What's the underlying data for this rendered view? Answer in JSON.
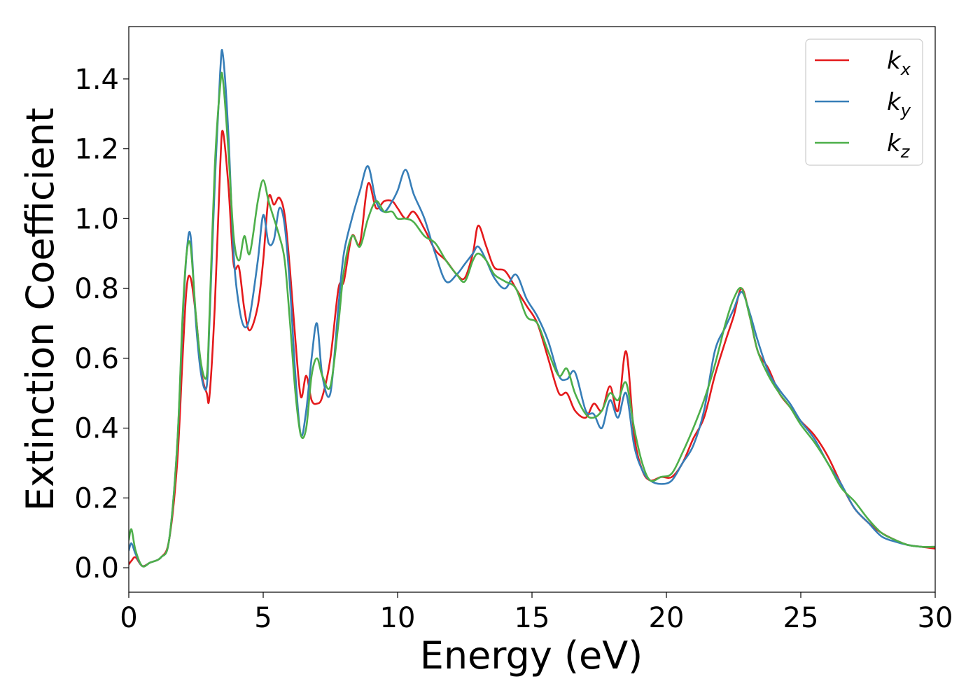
{
  "chart_data": {
    "type": "line",
    "xlabel": "Energy (eV)",
    "ylabel": "Extinction Coefficient",
    "xlim": [
      0,
      30
    ],
    "ylim": [
      -0.07,
      1.55
    ],
    "xticks": [
      0,
      5,
      10,
      15,
      20,
      25,
      30
    ],
    "xtick_labels": [
      "0",
      "5",
      "10",
      "15",
      "20",
      "25",
      "30"
    ],
    "yticks": [
      0.0,
      0.2,
      0.4,
      0.6,
      0.8,
      1.0,
      1.2,
      1.4
    ],
    "ytick_labels": [
      "0.0",
      "0.2",
      "0.4",
      "0.6",
      "0.8",
      "1.0",
      "1.2",
      "1.4"
    ],
    "grid": false,
    "legend_position": "top-right",
    "series": [
      {
        "name": "k_x",
        "label_base": "k",
        "label_sub": "x",
        "color": "#e41a1c",
        "x": [
          0,
          0.1,
          0.25,
          0.5,
          0.8,
          1.2,
          1.5,
          1.8,
          2.0,
          2.15,
          2.3,
          2.5,
          2.7,
          2.9,
          3.0,
          3.2,
          3.4,
          3.5,
          3.7,
          3.9,
          4.1,
          4.3,
          4.5,
          4.8,
          5.0,
          5.2,
          5.4,
          5.6,
          5.8,
          6.0,
          6.2,
          6.4,
          6.6,
          6.8,
          7.0,
          7.2,
          7.5,
          7.8,
          8.0,
          8.3,
          8.6,
          8.9,
          9.2,
          9.5,
          9.8,
          10.0,
          10.3,
          10.6,
          11.0,
          11.4,
          11.8,
          12.2,
          12.5,
          12.8,
          13.0,
          13.3,
          13.6,
          14.0,
          14.4,
          14.8,
          15.2,
          15.6,
          16.0,
          16.3,
          16.6,
          17.0,
          17.3,
          17.6,
          17.9,
          18.2,
          18.5,
          18.8,
          19.1,
          19.4,
          19.8,
          20.2,
          20.6,
          21.0,
          21.4,
          21.8,
          22.2,
          22.5,
          22.8,
          23.1,
          23.4,
          23.8,
          24.2,
          24.6,
          25.0,
          25.5,
          26.0,
          26.5,
          27.0,
          27.5,
          28.0,
          28.5,
          29.0,
          29.5,
          30.0
        ],
        "y": [
          0.01,
          0.02,
          0.03,
          0.005,
          0.015,
          0.03,
          0.08,
          0.3,
          0.6,
          0.8,
          0.83,
          0.72,
          0.56,
          0.5,
          0.49,
          0.75,
          1.15,
          1.25,
          1.1,
          0.87,
          0.86,
          0.74,
          0.68,
          0.75,
          0.88,
          1.06,
          1.04,
          1.06,
          1.01,
          0.85,
          0.65,
          0.49,
          0.55,
          0.48,
          0.47,
          0.49,
          0.6,
          0.8,
          0.82,
          0.95,
          0.93,
          1.1,
          1.03,
          1.05,
          1.05,
          1.03,
          1.0,
          1.02,
          0.97,
          0.91,
          0.88,
          0.84,
          0.83,
          0.9,
          0.98,
          0.92,
          0.86,
          0.85,
          0.8,
          0.75,
          0.7,
          0.6,
          0.5,
          0.5,
          0.45,
          0.43,
          0.47,
          0.45,
          0.52,
          0.45,
          0.62,
          0.38,
          0.28,
          0.25,
          0.26,
          0.26,
          0.3,
          0.37,
          0.43,
          0.55,
          0.65,
          0.72,
          0.8,
          0.72,
          0.62,
          0.57,
          0.5,
          0.46,
          0.42,
          0.38,
          0.32,
          0.24,
          0.17,
          0.13,
          0.1,
          0.08,
          0.065,
          0.06,
          0.055
        ]
      },
      {
        "name": "k_y",
        "label_base": "k",
        "label_sub": "y",
        "color": "#377eb8",
        "x": [
          0,
          0.1,
          0.25,
          0.5,
          0.8,
          1.2,
          1.5,
          1.8,
          2.0,
          2.15,
          2.3,
          2.5,
          2.7,
          2.9,
          3.0,
          3.2,
          3.4,
          3.5,
          3.7,
          3.9,
          4.1,
          4.3,
          4.5,
          4.8,
          5.0,
          5.2,
          5.4,
          5.6,
          5.8,
          6.0,
          6.2,
          6.4,
          6.6,
          6.8,
          7.0,
          7.2,
          7.5,
          7.8,
          8.0,
          8.3,
          8.6,
          8.9,
          9.2,
          9.5,
          9.8,
          10.0,
          10.3,
          10.6,
          11.0,
          11.4,
          11.8,
          12.2,
          12.5,
          12.8,
          13.0,
          13.3,
          13.6,
          14.0,
          14.4,
          14.8,
          15.2,
          15.6,
          16.0,
          16.3,
          16.6,
          17.0,
          17.3,
          17.6,
          17.9,
          18.2,
          18.5,
          18.8,
          19.1,
          19.4,
          19.8,
          20.2,
          20.6,
          21.0,
          21.4,
          21.8,
          22.2,
          22.5,
          22.8,
          23.1,
          23.4,
          23.8,
          24.2,
          24.6,
          25.0,
          25.5,
          26.0,
          26.5,
          27.0,
          27.5,
          28.0,
          28.5,
          29.0,
          29.5,
          30.0
        ],
        "y": [
          0.05,
          0.07,
          0.04,
          0.005,
          0.015,
          0.03,
          0.08,
          0.35,
          0.7,
          0.9,
          0.95,
          0.7,
          0.55,
          0.52,
          0.7,
          1.1,
          1.42,
          1.47,
          1.25,
          0.9,
          0.75,
          0.69,
          0.72,
          0.88,
          1.01,
          0.93,
          0.94,
          1.03,
          0.98,
          0.8,
          0.55,
          0.38,
          0.45,
          0.6,
          0.7,
          0.55,
          0.5,
          0.75,
          0.9,
          1.0,
          1.08,
          1.15,
          1.05,
          1.02,
          1.05,
          1.08,
          1.14,
          1.07,
          1.0,
          0.9,
          0.82,
          0.84,
          0.87,
          0.9,
          0.92,
          0.88,
          0.83,
          0.8,
          0.84,
          0.77,
          0.72,
          0.65,
          0.55,
          0.54,
          0.56,
          0.45,
          0.44,
          0.4,
          0.48,
          0.43,
          0.5,
          0.35,
          0.28,
          0.25,
          0.24,
          0.25,
          0.3,
          0.35,
          0.45,
          0.62,
          0.69,
          0.74,
          0.79,
          0.73,
          0.65,
          0.56,
          0.51,
          0.47,
          0.42,
          0.37,
          0.3,
          0.24,
          0.17,
          0.13,
          0.09,
          0.075,
          0.065,
          0.06,
          0.06
        ]
      },
      {
        "name": "k_z",
        "label_base": "k",
        "label_sub": "z",
        "color": "#4daf4a",
        "x": [
          0,
          0.1,
          0.25,
          0.5,
          0.8,
          1.2,
          1.5,
          1.8,
          2.0,
          2.15,
          2.3,
          2.5,
          2.7,
          2.9,
          3.0,
          3.2,
          3.4,
          3.5,
          3.7,
          3.9,
          4.1,
          4.3,
          4.5,
          4.8,
          5.0,
          5.2,
          5.4,
          5.6,
          5.8,
          6.0,
          6.2,
          6.4,
          6.6,
          6.8,
          7.0,
          7.2,
          7.5,
          7.8,
          8.0,
          8.3,
          8.6,
          8.9,
          9.2,
          9.5,
          9.8,
          10.0,
          10.3,
          10.6,
          11.0,
          11.4,
          11.8,
          12.2,
          12.5,
          12.8,
          13.0,
          13.3,
          13.6,
          14.0,
          14.4,
          14.8,
          15.2,
          15.6,
          16.0,
          16.3,
          16.6,
          17.0,
          17.3,
          17.6,
          17.9,
          18.2,
          18.5,
          18.8,
          19.1,
          19.4,
          19.8,
          20.2,
          20.6,
          21.0,
          21.4,
          21.8,
          22.2,
          22.5,
          22.8,
          23.1,
          23.4,
          23.8,
          24.2,
          24.6,
          25.0,
          25.5,
          26.0,
          26.5,
          27.0,
          27.5,
          28.0,
          28.5,
          29.0,
          29.5,
          30.0
        ],
        "y": [
          0.08,
          0.11,
          0.05,
          0.005,
          0.015,
          0.03,
          0.08,
          0.35,
          0.72,
          0.9,
          0.92,
          0.72,
          0.58,
          0.55,
          0.72,
          1.15,
          1.38,
          1.4,
          1.2,
          0.95,
          0.88,
          0.95,
          0.9,
          1.05,
          1.11,
          1.05,
          1.0,
          0.95,
          0.88,
          0.7,
          0.5,
          0.38,
          0.4,
          0.55,
          0.6,
          0.55,
          0.52,
          0.7,
          0.85,
          0.95,
          0.92,
          1.0,
          1.05,
          1.02,
          1.02,
          1.0,
          1.0,
          0.99,
          0.95,
          0.93,
          0.88,
          0.84,
          0.82,
          0.88,
          0.9,
          0.88,
          0.84,
          0.82,
          0.8,
          0.72,
          0.7,
          0.62,
          0.55,
          0.57,
          0.5,
          0.44,
          0.43,
          0.45,
          0.5,
          0.48,
          0.53,
          0.4,
          0.3,
          0.25,
          0.26,
          0.27,
          0.33,
          0.4,
          0.48,
          0.58,
          0.7,
          0.77,
          0.8,
          0.72,
          0.62,
          0.55,
          0.5,
          0.46,
          0.41,
          0.36,
          0.3,
          0.23,
          0.19,
          0.14,
          0.1,
          0.08,
          0.065,
          0.06,
          0.06
        ]
      }
    ]
  }
}
